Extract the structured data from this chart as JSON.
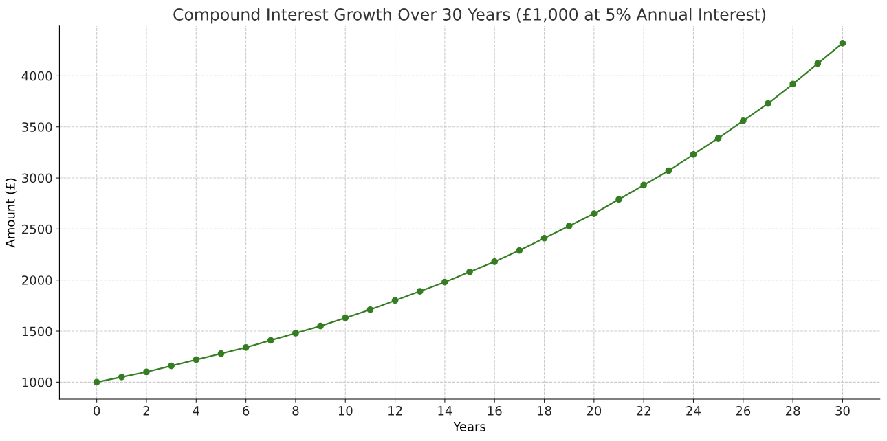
{
  "chart_data": {
    "type": "line",
    "title": "Compound Interest Growth Over 30 Years (£1,000 at 5% Annual Interest)",
    "xlabel": "Years",
    "ylabel": "Amount (£)",
    "x": [
      0,
      1,
      2,
      3,
      4,
      5,
      6,
      7,
      8,
      9,
      10,
      11,
      12,
      13,
      14,
      15,
      16,
      17,
      18,
      19,
      20,
      21,
      22,
      23,
      24,
      25,
      26,
      27,
      28,
      29,
      30
    ],
    "series": [
      {
        "color": "#347d22",
        "values": [
          1000,
          1050,
          1100,
          1160,
          1220,
          1280,
          1340,
          1410,
          1480,
          1550,
          1630,
          1710,
          1800,
          1890,
          1980,
          2080,
          2180,
          2290,
          2410,
          2530,
          2650,
          2790,
          2930,
          3070,
          3230,
          3390,
          3560,
          3730,
          3920,
          4120,
          4320
        ]
      }
    ],
    "xlim": [
      -1.5,
      31.5
    ],
    "xticks": [
      0,
      2,
      4,
      6,
      8,
      10,
      12,
      14,
      16,
      18,
      20,
      22,
      24,
      26,
      28,
      30
    ],
    "ylim": [
      834,
      4488
    ],
    "yticks": [
      1000,
      1500,
      2000,
      2500,
      3000,
      3500,
      4000
    ],
    "grid": true,
    "marker": "circle",
    "line_style": "solid",
    "legend": false
  }
}
